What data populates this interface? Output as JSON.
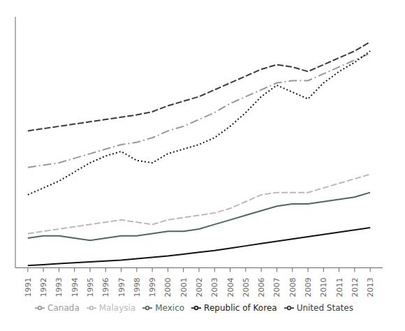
{
  "chart_data": {
    "type": "line",
    "x": [
      1991,
      1992,
      1993,
      1994,
      1995,
      1996,
      1997,
      1998,
      1999,
      2000,
      2001,
      2002,
      2003,
      2004,
      2005,
      2006,
      2007,
      2008,
      2009,
      2010,
      2011,
      2012,
      2013
    ],
    "series": [
      {
        "name": "United States",
        "color": "#3a3a3a",
        "line_style": "dashed",
        "values": [
          30.0,
          30.5,
          31.0,
          31.5,
          32.0,
          32.5,
          33.0,
          33.5,
          34.2,
          35.5,
          36.5,
          37.5,
          39.0,
          40.5,
          42.0,
          43.5,
          44.5,
          44.0,
          43.0,
          44.5,
          46.0,
          47.5,
          49.5
        ]
      },
      {
        "name": "Canada",
        "color": "#999999",
        "line_style": "dashdot",
        "values": [
          22.0,
          22.5,
          23.0,
          24.0,
          25.0,
          26.0,
          27.0,
          27.5,
          28.5,
          30.0,
          31.0,
          32.5,
          34.0,
          36.0,
          37.5,
          39.0,
          40.5,
          41.0,
          41.0,
          42.5,
          44.0,
          45.5,
          47.0
        ]
      },
      {
        "name": "Republic of Korea",
        "color": "#1a1a1a",
        "line_style": "dotted",
        "values": [
          16.0,
          17.5,
          19.0,
          21.0,
          23.0,
          24.5,
          25.5,
          23.5,
          23.0,
          25.0,
          26.0,
          27.0,
          28.5,
          31.0,
          34.0,
          37.5,
          40.0,
          38.5,
          37.0,
          40.5,
          43.0,
          45.0,
          47.5
        ]
      },
      {
        "name": "Malaysia",
        "color": "#bbbbbb",
        "line_style": "dashed",
        "values": [
          7.5,
          8.0,
          8.5,
          9.0,
          9.5,
          10.0,
          10.5,
          10.0,
          9.5,
          10.5,
          11.0,
          11.5,
          12.0,
          13.0,
          14.5,
          16.0,
          16.5,
          16.5,
          16.5,
          17.5,
          18.5,
          19.5,
          20.5
        ]
      },
      {
        "name": "Mexico",
        "color": "#4a6a5a",
        "line_style": "solid",
        "values": [
          6.5,
          7.0,
          7.0,
          6.5,
          6.0,
          6.5,
          7.0,
          7.0,
          7.5,
          8.0,
          8.0,
          8.5,
          9.5,
          10.5,
          11.5,
          12.5,
          13.5,
          14.0,
          14.0,
          14.5,
          15.0,
          15.5,
          16.5
        ]
      },
      {
        "color": "#111111",
        "line_style": "solid",
        "values": [
          0.5,
          0.7,
          0.9,
          1.1,
          1.3,
          1.5,
          1.7,
          2.0,
          2.3,
          2.6,
          3.0,
          3.4,
          3.8,
          4.3,
          4.8,
          5.3,
          5.8,
          6.3,
          6.8,
          7.3,
          7.8,
          8.3,
          8.8
        ]
      }
    ],
    "xlim": [
      1990.2,
      2013.8
    ],
    "xticks": [
      1991,
      1992,
      1993,
      1994,
      1995,
      1996,
      1997,
      1998,
      1999,
      2000,
      2001,
      2002,
      2003,
      2004,
      2005,
      2006,
      2007,
      2008,
      2009,
      2010,
      2011,
      2012,
      2013
    ],
    "ylim": [
      0,
      55
    ],
    "tick_labels": "x",
    "grid": false,
    "legend": "bottom"
  }
}
